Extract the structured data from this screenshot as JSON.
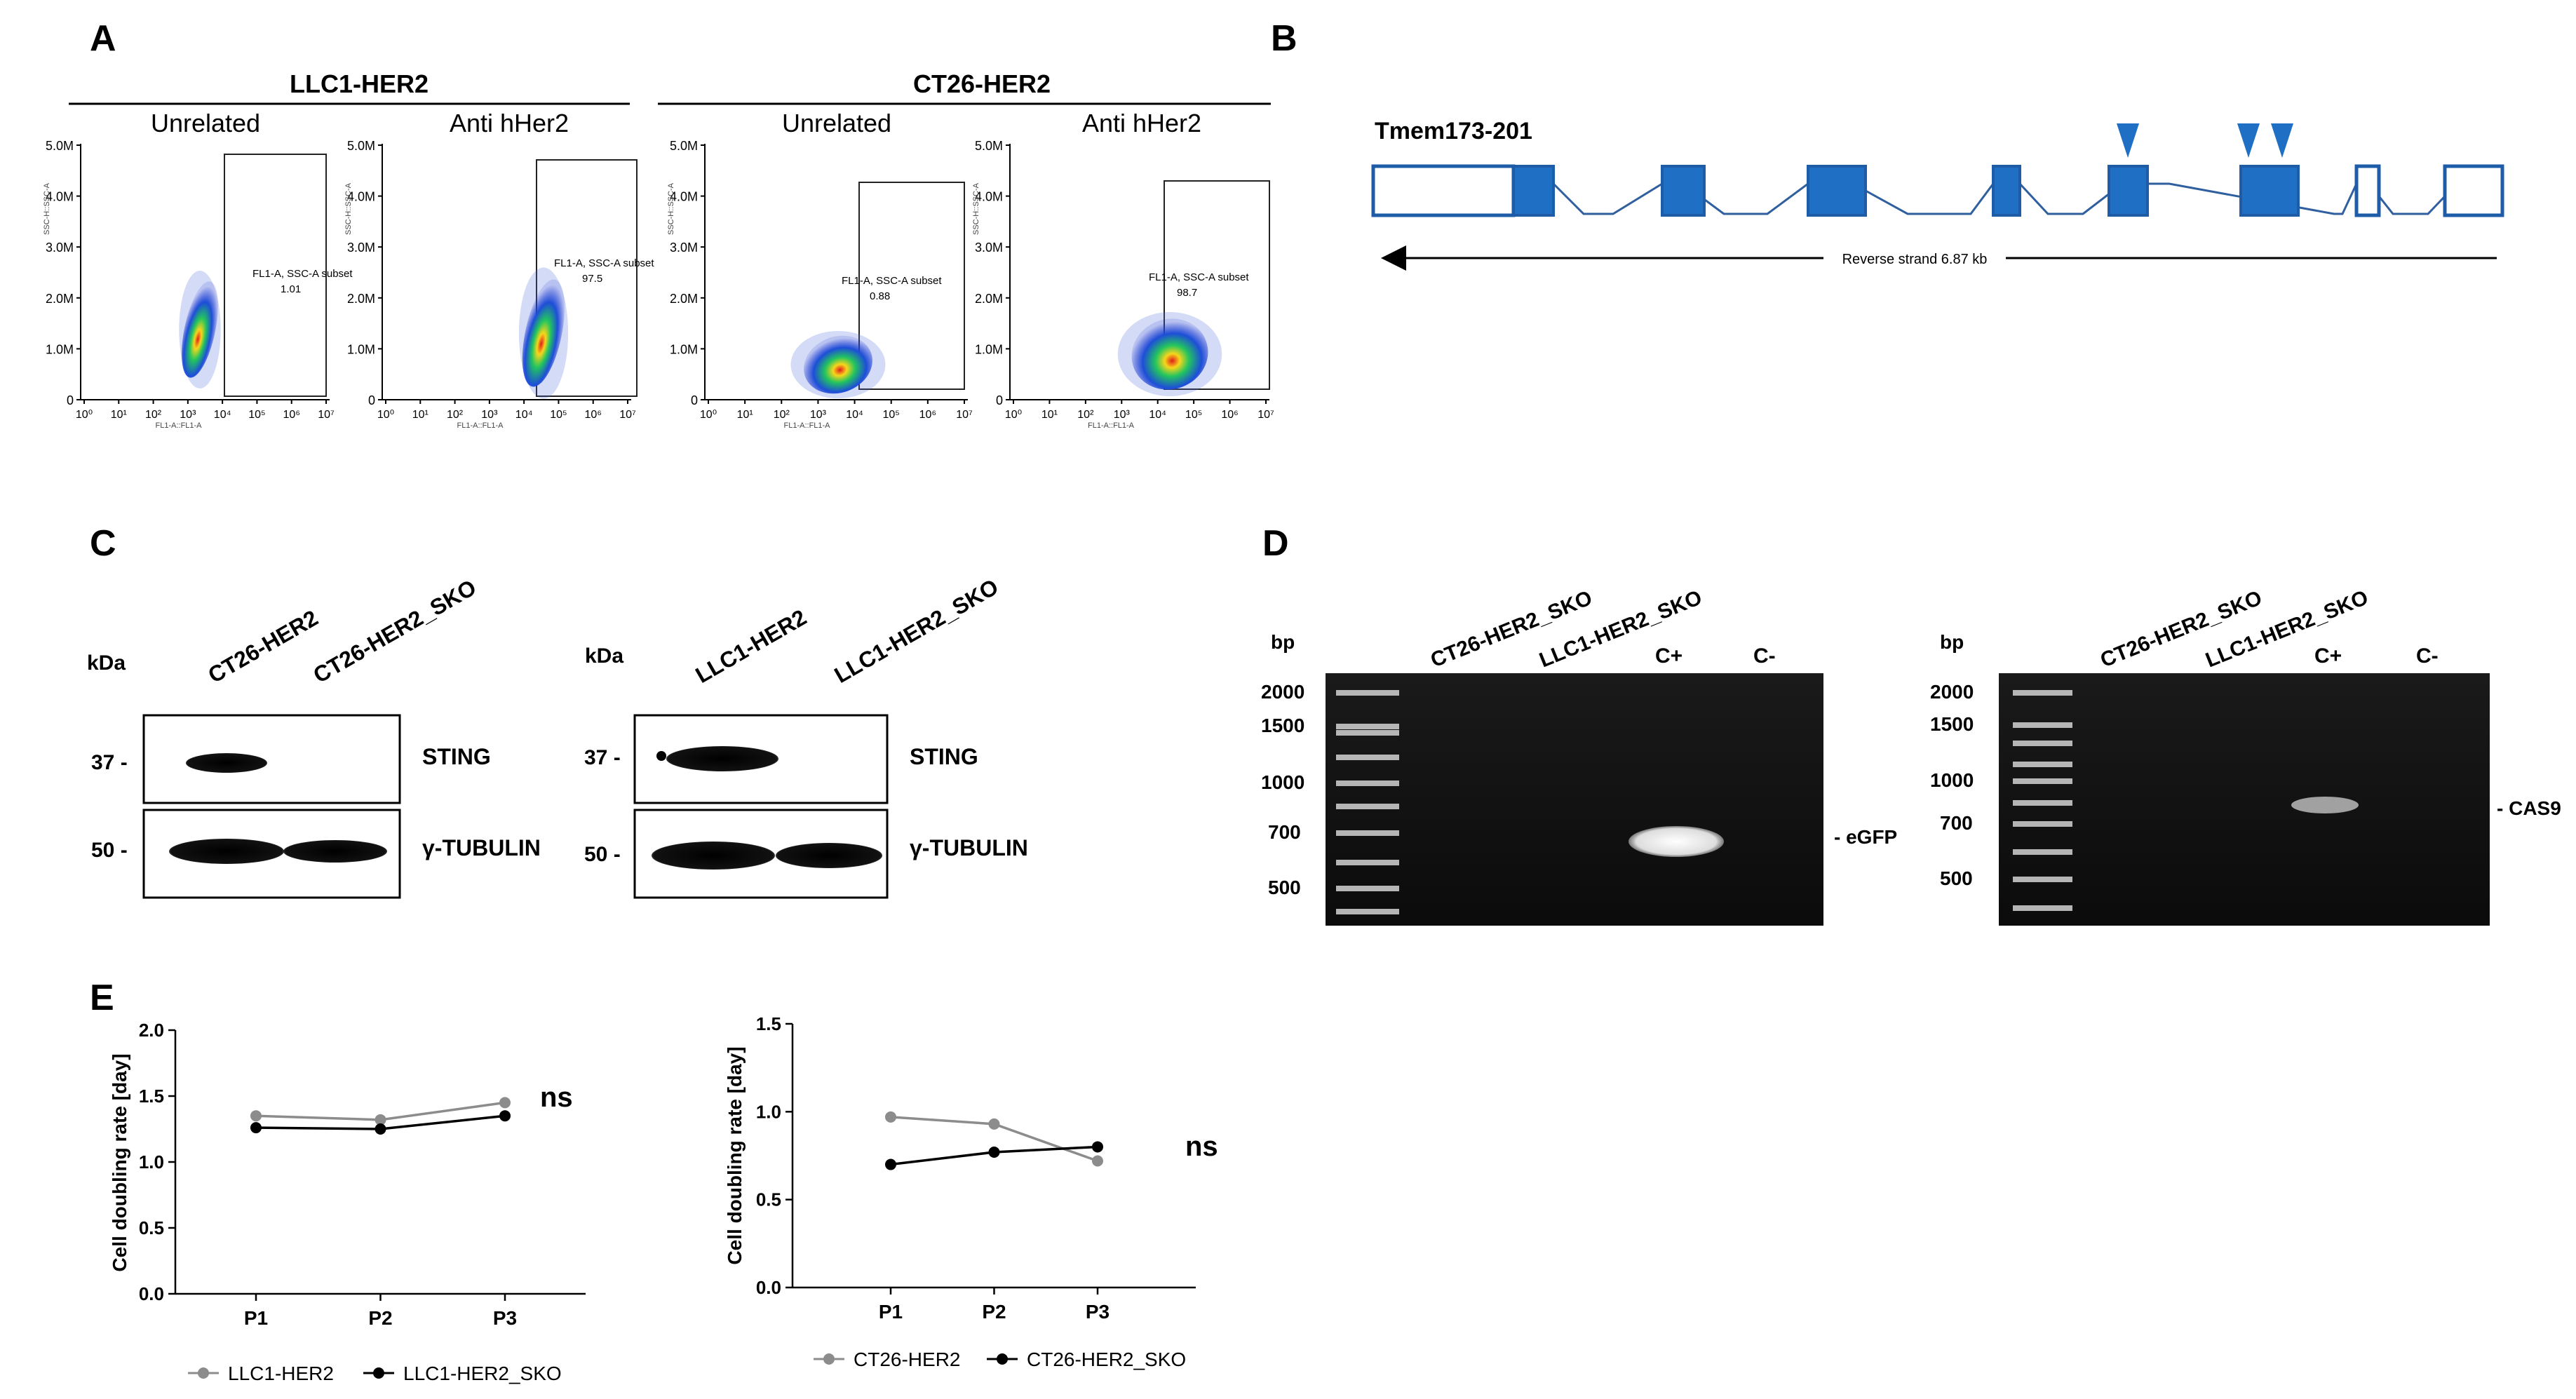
{
  "panel_letters": [
    "A",
    "B",
    "C",
    "D",
    "E"
  ],
  "flow": {
    "groups": [
      {
        "title": "LLC1-HER2",
        "sublabels": [
          "Unrelated",
          "Anti hHer2"
        ]
      },
      {
        "title": "CT26-HER2",
        "sublabels": [
          "Unrelated",
          "Anti hHer2"
        ]
      }
    ],
    "yticks": [
      "5.0M",
      "4.0M",
      "3.0M",
      "2.0M",
      "1.0M",
      "0"
    ],
    "xticks": [
      "10⁰",
      "10¹",
      "10²",
      "10³",
      "10⁴",
      "10⁵",
      "10⁶",
      "10⁷"
    ],
    "ylabel": "SSC-H::SSC-A",
    "xlabel_llc": "FL1-A::FL1-A",
    "xlabel_ct": "FL1-A::FL1-A",
    "gate_label": "FL1-A, SSC-A subset",
    "gate_values": [
      "1.01",
      "97.5",
      "0.88",
      "98.7"
    ]
  },
  "gene": {
    "name": "Tmem173-201",
    "strand": "Reverse strand 6.87 kb"
  },
  "western": {
    "kda": "kDa",
    "left_lanes": [
      "CT26-HER2",
      "CT26-HER2_SKO"
    ],
    "right_lanes": [
      "LLC1-HER2",
      "LLC1-HER2_SKO"
    ],
    "markers": [
      "37 -",
      "50 -"
    ],
    "bands": [
      "STING",
      "γ-TUBULIN"
    ]
  },
  "gel": {
    "bp": "bp",
    "left_lanes": [
      "CT26-HER2_SKO",
      "LLC1-HER2_SKO",
      "C+",
      "C-"
    ],
    "right_lanes": [
      "CT26-HER2_SKO",
      "LLC1-HER2_SKO",
      "C+",
      "C-"
    ],
    "ladder": [
      "2000",
      "1500",
      "1000",
      "700",
      "500"
    ],
    "left_product": "- eGFP",
    "right_product": "- CAS9"
  },
  "chart_data": [
    {
      "type": "line",
      "categories": [
        "P1",
        "P2",
        "P3"
      ],
      "series": [
        {
          "name": "LLC1-HER2",
          "values": [
            1.35,
            1.32,
            1.45
          ],
          "color": "#8c8c8c"
        },
        {
          "name": "LLC1-HER2_SKO",
          "values": [
            1.26,
            1.25,
            1.35
          ],
          "color": "#000000"
        }
      ],
      "ylabel": "Cell doubling rate [day]",
      "ylim": [
        0,
        2.0
      ],
      "yticks": [
        "0.0",
        "0.5",
        "1.0",
        "1.5",
        "2.0"
      ],
      "annotation": "ns"
    },
    {
      "type": "line",
      "categories": [
        "P1",
        "P2",
        "P3"
      ],
      "series": [
        {
          "name": "CT26-HER2",
          "values": [
            0.97,
            0.93,
            0.72
          ],
          "color": "#8c8c8c"
        },
        {
          "name": "CT26-HER2_SKO",
          "values": [
            0.7,
            0.77,
            0.8
          ],
          "color": "#000000"
        }
      ],
      "ylabel": "Cell doubling rate [day]",
      "ylim": [
        0,
        1.5
      ],
      "yticks": [
        "0.0",
        "0.5",
        "1.0",
        "1.5"
      ],
      "annotation": "ns"
    }
  ]
}
